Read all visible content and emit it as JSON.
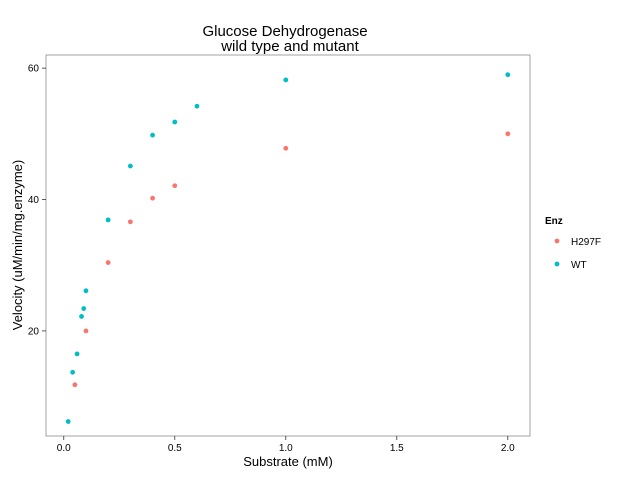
{
  "chart_data": {
    "type": "scatter",
    "title_line1": "Glucose Dehydrogenase",
    "title_line2": "wild type and mutant",
    "xlabel": "Substrate (mM)",
    "ylabel": "Velocity (uM/min/mg.enzyme)",
    "xlim": [
      -0.08,
      2.1
    ],
    "ylim": [
      4,
      62
    ],
    "x_ticks": [
      0.0,
      0.5,
      1.0,
      1.5,
      2.0
    ],
    "x_tick_labels": [
      "0.0",
      "0.5",
      "1.0",
      "1.5",
      "2.0"
    ],
    "y_ticks": [
      20,
      40,
      60
    ],
    "y_tick_labels": [
      "20",
      "40",
      "60"
    ],
    "grid": false,
    "legend_title": "Enz",
    "legend_position": "right",
    "series": [
      {
        "name": "H297F",
        "color": "#F8766D",
        "x": [
          0.05,
          0.1,
          0.2,
          0.3,
          0.4,
          0.5,
          1.0,
          2.0
        ],
        "y": [
          11.8,
          20.0,
          30.4,
          36.6,
          40.2,
          42.1,
          47.8,
          50.0
        ]
      },
      {
        "name": "WT",
        "color": "#00BFC4",
        "x": [
          0.02,
          0.04,
          0.06,
          0.08,
          0.09,
          0.1,
          0.2,
          0.3,
          0.4,
          0.5,
          0.6,
          1.0,
          2.0
        ],
        "y": [
          6.2,
          13.7,
          16.5,
          22.2,
          23.4,
          26.1,
          36.9,
          45.1,
          49.8,
          51.8,
          54.2,
          58.2,
          59.0
        ]
      }
    ]
  }
}
